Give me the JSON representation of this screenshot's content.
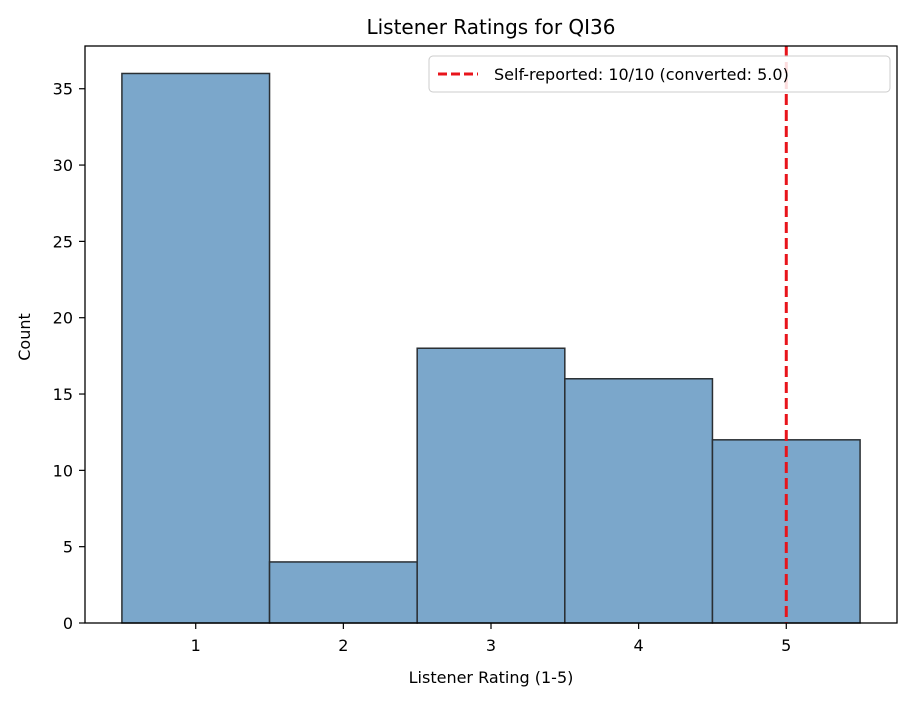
{
  "chart_data": {
    "type": "bar",
    "title": "Listener Ratings for QI36",
    "xlabel": "Listener Rating (1-5)",
    "ylabel": "Count",
    "categories": [
      "1",
      "2",
      "3",
      "4",
      "5"
    ],
    "x": [
      1,
      2,
      3,
      4,
      5
    ],
    "values": [
      36,
      4,
      18,
      16,
      12
    ],
    "xlim": [
      0.25,
      5.75
    ],
    "ylim": [
      0,
      37.8
    ],
    "yticks": [
      0,
      5,
      10,
      15,
      20,
      25,
      30,
      35
    ],
    "grid": false,
    "bar_color": "#7ba7cb",
    "bar_edge_color": "#2a2f33",
    "reference_line": {
      "x": 5.0,
      "color": "#e8141b",
      "style": "dashed",
      "label": "Self-reported: 10/10 (converted: 5.0)"
    },
    "legend": {
      "position": "upper right"
    }
  }
}
